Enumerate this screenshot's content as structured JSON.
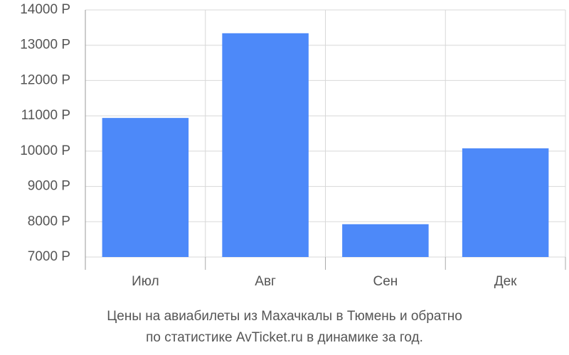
{
  "chart_data": {
    "type": "bar",
    "title": [
      "Цены на авиабилеты из Махачкалы в Тюмень и обратно",
      "по статистике AvTicket.ru в динамике за год."
    ],
    "categories": [
      "Июл",
      "Авг",
      "Сен",
      "Дек"
    ],
    "values": [
      10940,
      13340,
      7930,
      10080
    ],
    "color": "#4d89f9",
    "ylim": [
      7000,
      14000
    ],
    "yticks": [
      {
        "value": 7000,
        "label": "7000 Р"
      },
      {
        "value": 8000,
        "label": "8000 Р"
      },
      {
        "value": 9000,
        "label": "9000 Р"
      },
      {
        "value": 10000,
        "label": "10000 Р"
      },
      {
        "value": 11000,
        "label": "11000 Р"
      },
      {
        "value": 12000,
        "label": "12000 Р"
      },
      {
        "value": 13000,
        "label": "13000 Р"
      },
      {
        "value": 14000,
        "label": "14000 Р"
      }
    ],
    "grid": true
  }
}
